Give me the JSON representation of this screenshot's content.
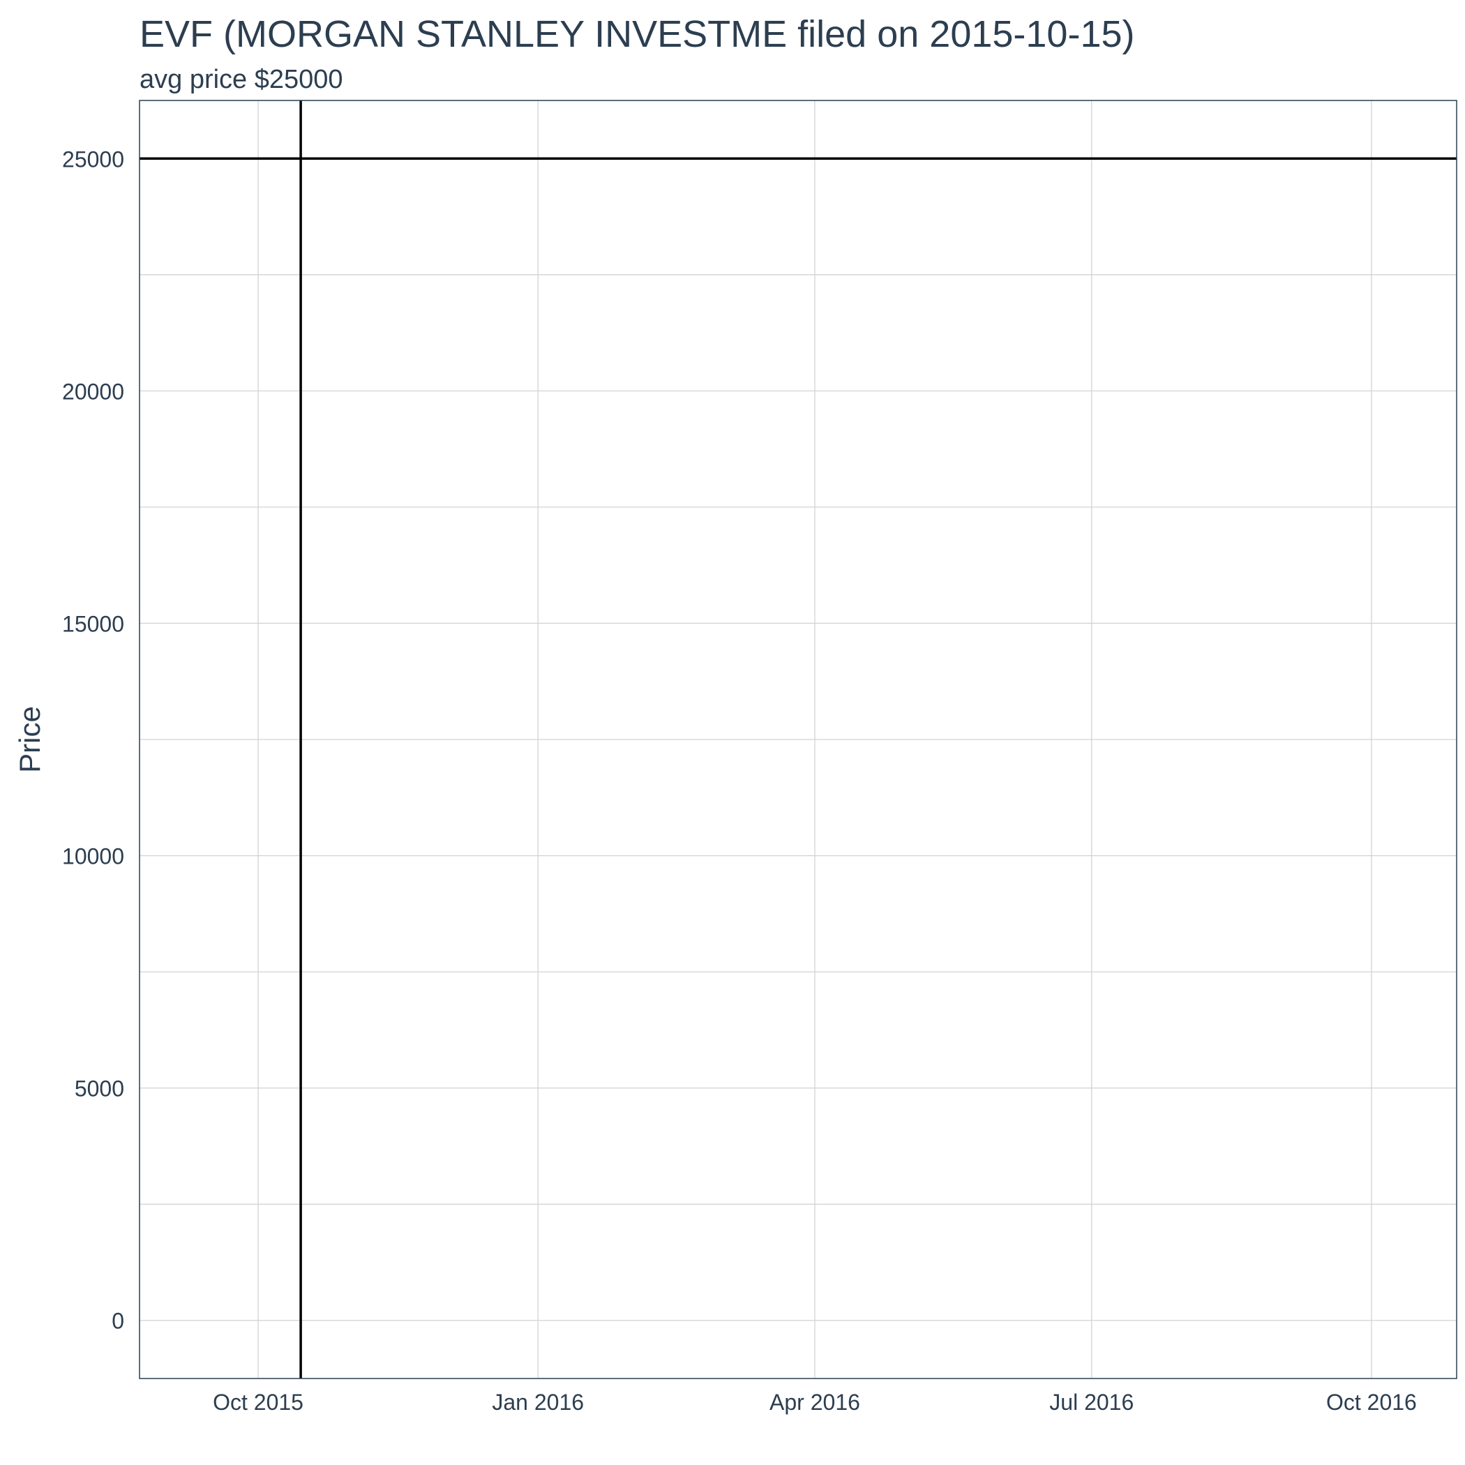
{
  "chart_data": {
    "type": "line",
    "title": "EVF (MORGAN STANLEY INVESTME filed on 2015-10-15)",
    "subtitle": "avg price $25000",
    "xlabel": "",
    "ylabel": "Price",
    "x_ticks": [
      {
        "label": "Oct 2015",
        "date": "2015-10-01"
      },
      {
        "label": "Jan 2016",
        "date": "2016-01-01"
      },
      {
        "label": "Apr 2016",
        "date": "2016-04-01"
      },
      {
        "label": "Jul 2016",
        "date": "2016-07-01"
      },
      {
        "label": "Oct 2016",
        "date": "2016-10-01"
      }
    ],
    "y_ticks": [
      0,
      5000,
      10000,
      15000,
      20000,
      25000
    ],
    "xlim": [
      "2015-08-23",
      "2016-10-29"
    ],
    "ylim": [
      -1250,
      26250
    ],
    "hlines": [
      {
        "y": 25000
      }
    ],
    "vlines": [
      {
        "x": "2015-10-15"
      }
    ],
    "grid": true,
    "colors": {
      "text": "#2c3e50",
      "line": "#000000",
      "grid": "#d3d3d3",
      "panel_border": "#2c3e50"
    }
  }
}
